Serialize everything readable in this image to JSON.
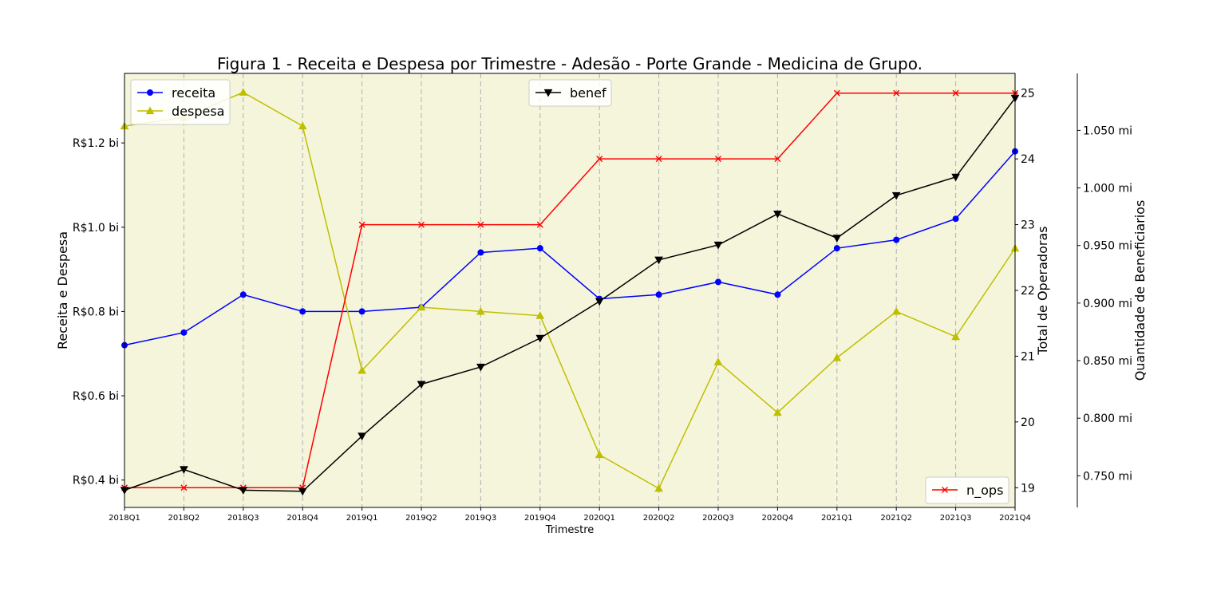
{
  "chart_data": {
    "type": "line",
    "title": "Figura 1 - Receita e Despesa por Trimestre - Adesão - Porte Grande - Medicina de Grupo.",
    "xlabel": "Trimestre",
    "categories": [
      "2018Q1",
      "2018Q2",
      "2018Q3",
      "2018Q4",
      "2019Q1",
      "2019Q2",
      "2019Q3",
      "2019Q4",
      "2020Q1",
      "2020Q2",
      "2020Q3",
      "2020Q4",
      "2021Q1",
      "2021Q2",
      "2021Q3",
      "2021Q4"
    ],
    "axes": {
      "left": {
        "label": "Receita e Despesa",
        "range": [
          0.335,
          1.365
        ],
        "ticks": [
          0.4,
          0.6,
          0.8,
          1.0,
          1.2
        ],
        "tick_labels": [
          "R$0.4 bi",
          "R$0.6 bi",
          "R$0.8 bi",
          "R$1.0 bi",
          "R$1.2 bi"
        ]
      },
      "right_ops": {
        "label": "Total de Operadoras",
        "range": [
          18.7,
          25.3
        ],
        "ticks": [
          19,
          20,
          21,
          22,
          23,
          24,
          25
        ],
        "tick_labels": [
          "19",
          "20",
          "21",
          "22",
          "23",
          "24",
          "25"
        ]
      },
      "right_benef": {
        "label": "Quantidade de Beneficiarios",
        "range": [
          0.7225,
          1.0995
        ],
        "ticks": [
          0.75,
          0.8,
          0.85,
          0.9,
          0.95,
          1.0,
          1.05
        ],
        "tick_labels": [
          "0.750 mi",
          "0.800 mi",
          "0.850 mi",
          "0.900 mi",
          "0.950 mi",
          "1.000 mi",
          "1.050 mi"
        ]
      }
    },
    "series": [
      {
        "name": "receita",
        "axis": "left",
        "color": "#0000ff",
        "marker": "circle",
        "values": [
          0.72,
          0.75,
          0.84,
          0.8,
          0.8,
          0.81,
          0.94,
          0.95,
          0.83,
          0.84,
          0.87,
          0.84,
          0.95,
          0.97,
          1.02,
          1.18
        ]
      },
      {
        "name": "despesa",
        "axis": "left",
        "color": "#bfbf00",
        "marker": "triangle-up",
        "values": [
          1.24,
          1.26,
          1.32,
          1.24,
          0.66,
          0.81,
          0.8,
          0.79,
          0.46,
          0.38,
          0.68,
          0.56,
          0.69,
          0.8,
          0.74,
          0.95
        ]
      },
      {
        "name": "benef",
        "axis": "right_benef",
        "color": "#000000",
        "marker": "triangle-down",
        "values": [
          0.7375,
          0.7555,
          0.7375,
          0.7365,
          0.7845,
          0.8295,
          0.8445,
          0.8695,
          0.9015,
          0.9375,
          0.9505,
          0.9775,
          0.9565,
          0.9935,
          1.0095,
          1.078
        ]
      },
      {
        "name": "n_ops",
        "axis": "right_ops",
        "color": "#ff0000",
        "marker": "x",
        "values": [
          19,
          19,
          19,
          19,
          23,
          23,
          23,
          23,
          24,
          24,
          24,
          24,
          25,
          25,
          25,
          25
        ]
      }
    ],
    "legends": {
      "left": {
        "placement": "upper-left",
        "series": [
          "receita",
          "despesa"
        ]
      },
      "center": {
        "placement": "upper-center",
        "series": [
          "benef"
        ]
      },
      "right": {
        "placement": "lower-right",
        "series": [
          "n_ops"
        ]
      }
    },
    "plot_background": "#f5f5dc",
    "xgrid": true,
    "ygrid": false
  }
}
